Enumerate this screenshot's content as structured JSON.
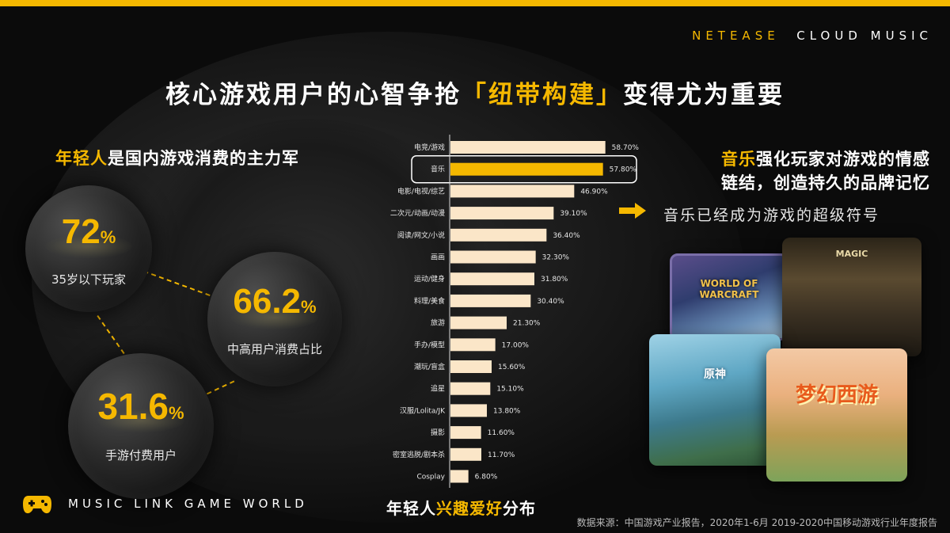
{
  "brand": {
    "part1": "NETEASE",
    "part2": "CLOUD MUSIC"
  },
  "headline": {
    "pre": "核心游戏用户的心智争抢",
    "highlight": "「纽带构建」",
    "post": "变得尤为重要"
  },
  "left_title": {
    "highlight": "年轻人",
    "rest": "是国内游戏消费的主力军"
  },
  "stats": [
    {
      "value": "72",
      "unit": "%",
      "label": "35岁以下玩家"
    },
    {
      "value": "66.2",
      "unit": "%",
      "label": "中高用户消费占比"
    },
    {
      "value": "31.6",
      "unit": "%",
      "label": "手游付费用户"
    }
  ],
  "footer_brand": "MUSIC LINK GAME WORLD",
  "chart_title": {
    "pre": "年轻人",
    "highlight": "兴趣爱好",
    "post": "分布"
  },
  "right": {
    "line1_highlight": "音乐",
    "line1_rest": "强化玩家对游戏的情感",
    "line2": "链结，创造持久的品牌记忆",
    "sub": "音乐已经成为游戏的超级符号"
  },
  "cards": [
    {
      "name": "world-of-warcraft",
      "caption": "WORLD OF WARCRAFT"
    },
    {
      "name": "harry-potter-magic",
      "caption": "MAGIC"
    },
    {
      "name": "genshin",
      "caption": "原神"
    },
    {
      "name": "menghuan-xiyou",
      "caption": "梦幻西游"
    }
  ],
  "source": "数据来源：中国游戏产业报告，2020年1-6月 2019-2020中国移动游戏行业年度报告",
  "colors": {
    "accent": "#f5b800",
    "bar": "#fbe6c8",
    "highlight_bar": "#f5b800"
  },
  "chart_data": {
    "type": "bar",
    "orientation": "horizontal",
    "title": "年轻人兴趣爱好分布",
    "highlight_category": "音乐",
    "categories": [
      "电竞/游戏",
      "音乐",
      "电影/电视/综艺",
      "二次元/动画/动漫",
      "阅读/网文/小说",
      "画画",
      "运动/健身",
      "料理/美食",
      "旅游",
      "手办/模型",
      "潮玩/盲盒",
      "追星",
      "汉服/Lolita/JK",
      "摄影",
      "密室逃脱/剧本杀",
      "Cosplay"
    ],
    "values": [
      58.7,
      57.8,
      46.9,
      39.1,
      36.4,
      32.3,
      31.8,
      30.4,
      21.3,
      17.0,
      15.6,
      15.1,
      13.8,
      11.6,
      11.7,
      6.8
    ],
    "value_labels": [
      "58.70%",
      "57.80%",
      "46.90%",
      "39.10%",
      "36.40%",
      "32.30%",
      "31.80%",
      "30.40%",
      "21.30%",
      "17.00%",
      "15.60%",
      "15.10%",
      "13.80%",
      "11.60%",
      "11.70%",
      "6.80%"
    ],
    "xlim": [
      0,
      60
    ],
    "grid": false
  }
}
